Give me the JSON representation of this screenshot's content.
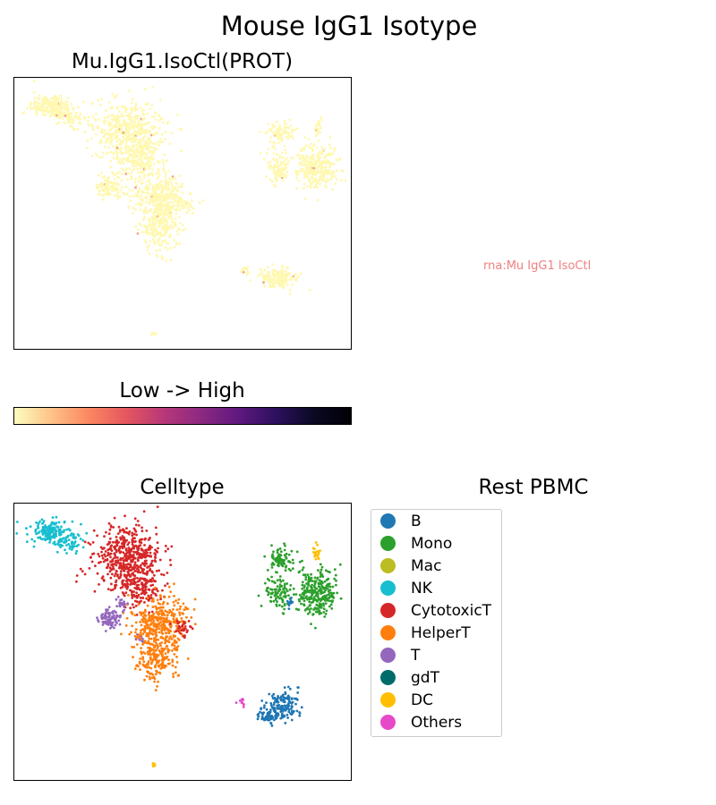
{
  "figure": {
    "title": "Mouse IgG1 Isotype"
  },
  "chart_data": [
    {
      "type": "scatter",
      "title": "Mu.IgG1.IsoCtl(PROT)",
      "xlabel": "",
      "ylabel": "",
      "axes_ticks": "none",
      "color_encoding": "expression, low to high",
      "point_color_low": "#FFF8B0",
      "sparse_high_points_color": "#F4A58A",
      "colorbar": {
        "label": "Low  ->  High",
        "colormap": "magma_r",
        "stops": [
          "#FCFDBF",
          "#FEC287",
          "#FB8761",
          "#E5565E",
          "#B73779",
          "#8C2981",
          "#5F187F",
          "#2C115F",
          "#0B0924",
          "#000004"
        ]
      }
    },
    {
      "type": "scatter",
      "title": "Celltype",
      "xlabel": "",
      "ylabel": "",
      "axes_ticks": "none",
      "legend_title": "Rest PBMC",
      "legend_position": "right",
      "categories": [
        {
          "name": "B",
          "color": "#1F77B4"
        },
        {
          "name": "Mono",
          "color": "#2CA02C"
        },
        {
          "name": "Mac",
          "color": "#BCBD22"
        },
        {
          "name": "NK",
          "color": "#17BECF"
        },
        {
          "name": "CytotoxicT",
          "color": "#D62728"
        },
        {
          "name": "HelperT",
          "color": "#FF7F0E"
        },
        {
          "name": "T",
          "color": "#9467BD"
        },
        {
          "name": "gdT",
          "color": "#006B6B"
        },
        {
          "name": "DC",
          "color": "#FFBF00"
        },
        {
          "name": "Others",
          "color": "#E64AC8"
        }
      ]
    }
  ],
  "rna_panel": {
    "note": "rna:Mu IgG1 IsoCtl",
    "note_color": "#F08080"
  }
}
